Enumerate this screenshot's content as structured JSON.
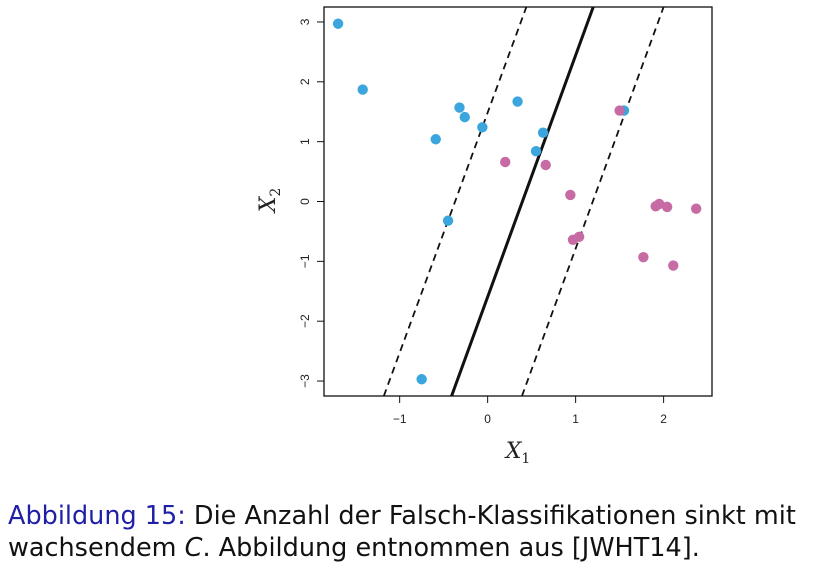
{
  "chart_data": {
    "type": "scatter",
    "xlabel": "X",
    "xlabel_sub": "1",
    "ylabel": "X",
    "ylabel_sub": "2",
    "xlim": [
      -1.86,
      2.55
    ],
    "ylim": [
      -3.25,
      3.25
    ],
    "xticks": [
      -1,
      0,
      1,
      2
    ],
    "yticks": [
      -3,
      -2,
      -1,
      0,
      1,
      2,
      3
    ],
    "colors": {
      "blue": "#3aa6dd",
      "purple": "#c66ba3",
      "line": "#111111"
    },
    "series": [
      {
        "color": "blue",
        "points": [
          [
            -1.7,
            2.97
          ],
          [
            -1.42,
            1.87
          ],
          [
            -0.59,
            1.04
          ],
          [
            -0.32,
            1.57
          ],
          [
            -0.26,
            1.41
          ],
          [
            -0.06,
            1.24
          ],
          [
            0.34,
            1.67
          ],
          [
            0.63,
            1.15
          ],
          [
            0.55,
            0.84
          ],
          [
            1.55,
            1.52
          ],
          [
            -0.45,
            -0.32
          ],
          [
            -0.75,
            -2.97
          ]
        ]
      },
      {
        "color": "purple",
        "points": [
          [
            1.5,
            1.52
          ],
          [
            0.2,
            0.66
          ],
          [
            0.66,
            0.61
          ],
          [
            0.94,
            0.11
          ],
          [
            0.97,
            -0.64
          ],
          [
            1.04,
            -0.59
          ],
          [
            1.77,
            -0.93
          ],
          [
            1.91,
            -0.08
          ],
          [
            1.95,
            -0.04
          ],
          [
            2.04,
            -0.09
          ],
          [
            2.11,
            -1.07
          ],
          [
            2.37,
            -0.12
          ]
        ]
      }
    ],
    "lines": [
      {
        "style": "solid",
        "from": [
          -0.41,
          -3.25
        ],
        "to": [
          1.2,
          3.25
        ]
      },
      {
        "style": "dashed",
        "from": [
          -1.18,
          -3.25
        ],
        "to": [
          0.44,
          3.25
        ]
      },
      {
        "style": "dashed",
        "from": [
          0.39,
          -3.25
        ],
        "to": [
          2.0,
          3.25
        ]
      }
    ]
  },
  "caption": {
    "label": "Abbildung 15:",
    "text_before": " Die Anzahl der Falsch-Klassifikationen sinkt mit wachsendem ",
    "symbol": "C",
    "text_after": ". Abbildung entnommen aus [JWHT14]."
  }
}
